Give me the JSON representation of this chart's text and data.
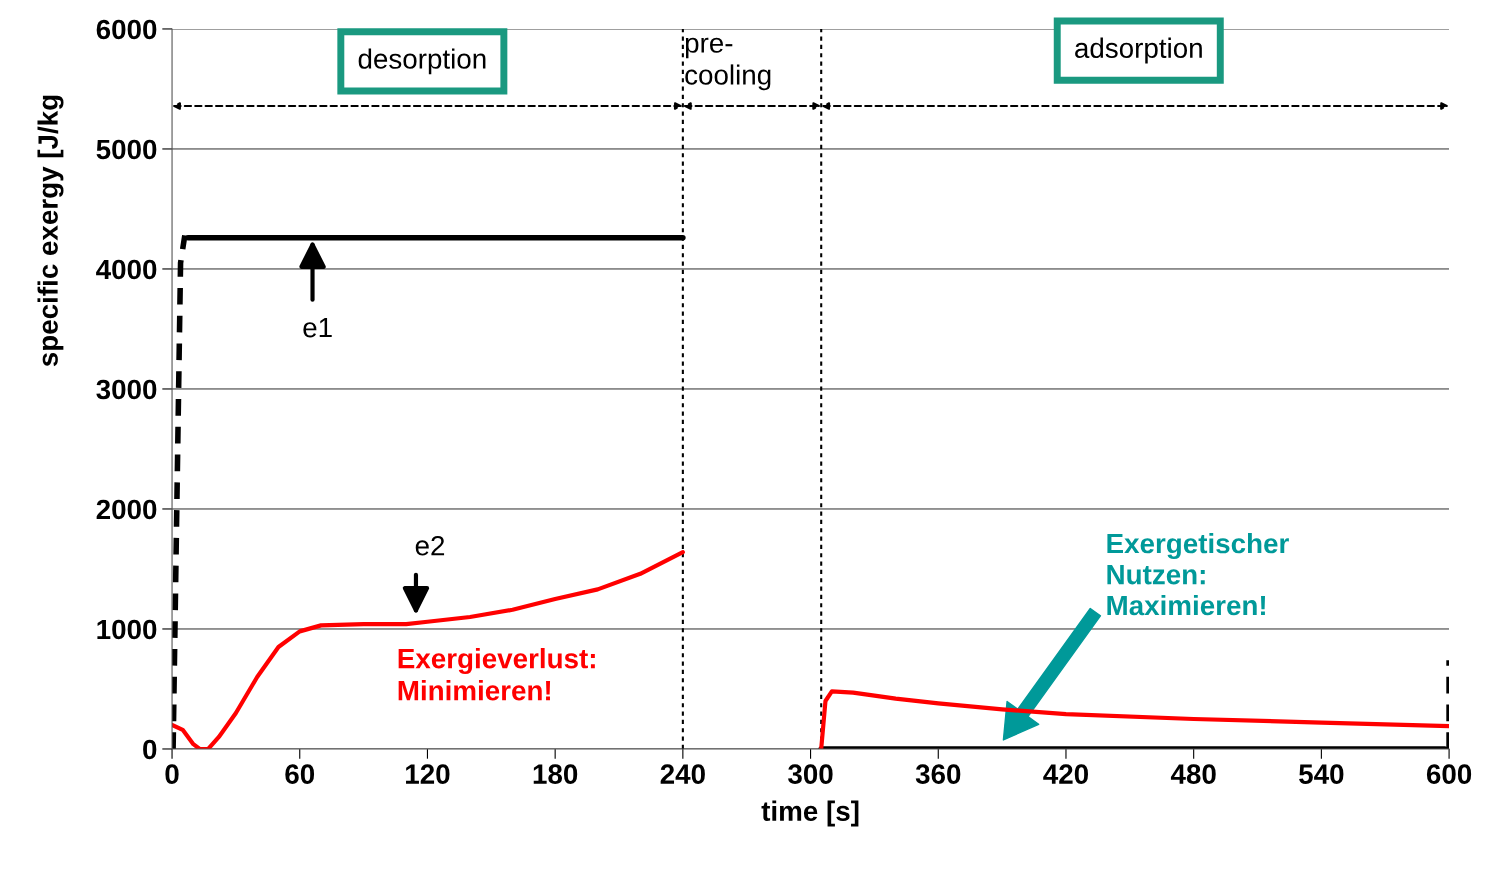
{
  "chart_data": {
    "type": "line",
    "xlabel": "time [s]",
    "ylabel": "specific exergy [J/kg",
    "xlim": [
      0,
      600
    ],
    "ylim": [
      0,
      6000
    ],
    "xticks": [
      0,
      60,
      120,
      180,
      240,
      300,
      360,
      420,
      480,
      540,
      600
    ],
    "yticks": [
      0,
      1000,
      2000,
      3000,
      4000,
      5000,
      6000
    ],
    "grid": "y",
    "series": [
      {
        "color": "#000000",
        "line_style": "dashed",
        "x": [
          0.5,
          4,
          6
        ],
        "values": [
          0,
          4050,
          4280
        ]
      },
      {
        "color": "#000000",
        "line_style": "solid",
        "x": [
          7.5,
          240
        ],
        "values": [
          4260,
          4260
        ]
      },
      {
        "color": "#000000",
        "line_style": "solid",
        "x": [
          305,
          598
        ],
        "values": [
          0,
          0
        ]
      },
      {
        "color": "#000000",
        "line_style": "dashed",
        "x": [
          600,
          600
        ],
        "values": [
          0,
          740
        ]
      },
      {
        "color": "#ff0000",
        "line_style": "solid",
        "x": [
          0,
          5,
          10,
          13,
          17,
          22,
          30,
          40,
          50,
          60,
          70,
          90,
          110,
          120,
          140,
          160,
          180,
          200,
          220,
          240
        ],
        "values": [
          200,
          160,
          40,
          0,
          0,
          100,
          300,
          600,
          850,
          980,
          1030,
          1040,
          1040,
          1060,
          1100,
          1160,
          1250,
          1330,
          1460,
          1640
        ]
      },
      {
        "color": "#ff0000",
        "line_style": "solid",
        "x": [
          305,
          307,
          310,
          320,
          340,
          360,
          390,
          420,
          480,
          540,
          600
        ],
        "values": [
          0,
          400,
          480,
          470,
          420,
          380,
          330,
          290,
          250,
          220,
          190
        ]
      }
    ],
    "ref_lines": [
      {
        "axis": "x",
        "value": 240,
        "color": "#000000",
        "line_style": "dotted"
      },
      {
        "axis": "x",
        "value": 305,
        "color": "#000000",
        "line_style": "dotted"
      }
    ],
    "annotations": [
      "desorption",
      "pre-\ncooling",
      "adsorption",
      "e1",
      "e2",
      "Exergieverlust:\nMinimieren!",
      "Exergetischer\nNutzen:\nMaximieren!"
    ]
  }
}
